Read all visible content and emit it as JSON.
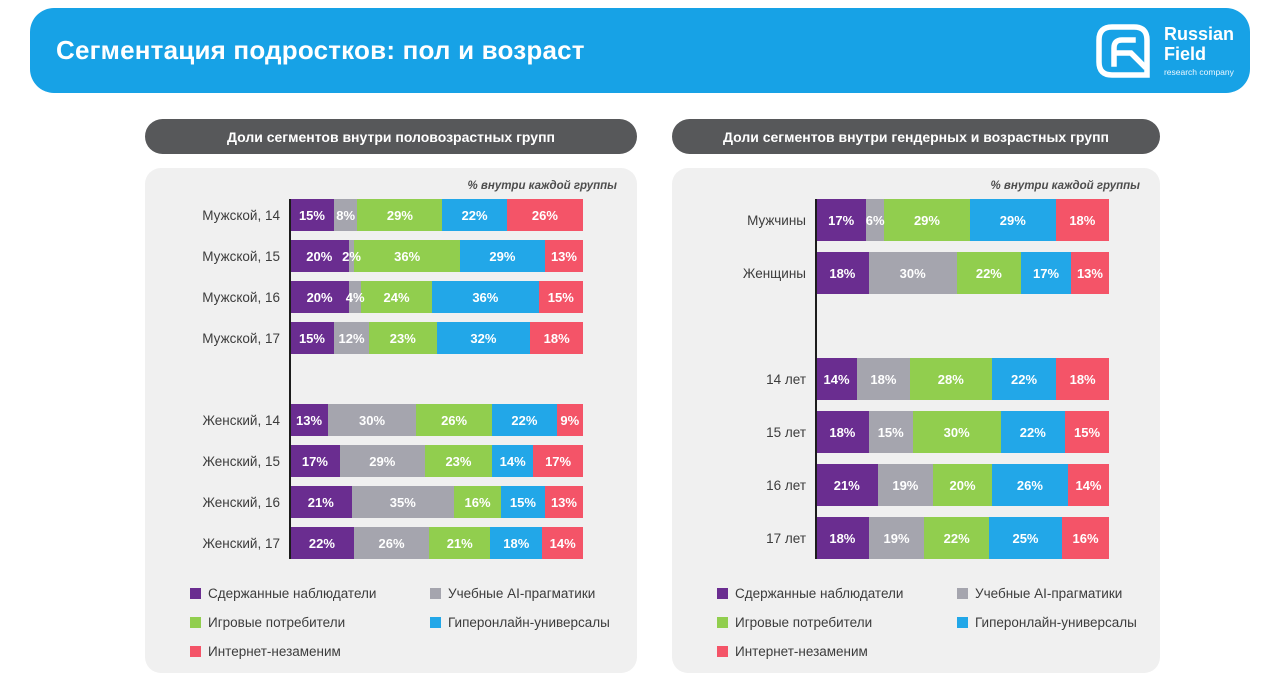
{
  "header": {
    "title": "Сегментация подростков: пол и возраст",
    "logo": {
      "line1": "Russian",
      "line2": "Field",
      "subtitle": "research company"
    }
  },
  "colors": {
    "header_blue": "#17A2E6",
    "pill_gray": "#57585A",
    "panel_gray": "#F0F0F0",
    "axis": "#1C1C1C"
  },
  "chart_data": [
    {
      "type": "bar",
      "stacked": true,
      "orientation": "horizontal",
      "title": "Доли сегментов внутри половозрастных групп",
      "note": "% внутри каждой группы",
      "unit": "%",
      "xlim": [
        0,
        100
      ],
      "series": [
        "Сдержанные наблюдатели",
        "Учебные AI-прагматики",
        "Игровые потребители",
        "Гиперонлайн-универсалы",
        "Интернет-незаменим"
      ],
      "series_colors": [
        "#6A2D90",
        "#A5A5AE",
        "#91CE4E",
        "#22A7E8",
        "#F45468"
      ],
      "groups": [
        {
          "rows": [
            {
              "label": "Мужской, 14",
              "values": [
                15,
                8,
                29,
                22,
                26
              ]
            },
            {
              "label": "Мужской, 15",
              "values": [
                20,
                2,
                36,
                29,
                13
              ]
            },
            {
              "label": "Мужской, 16",
              "values": [
                20,
                4,
                24,
                36,
                15
              ]
            },
            {
              "label": "Мужской, 17",
              "values": [
                15,
                12,
                23,
                32,
                18
              ]
            }
          ]
        },
        {
          "rows": [
            {
              "label": "Женский, 14",
              "values": [
                13,
                30,
                26,
                22,
                9
              ]
            },
            {
              "label": "Женский, 15",
              "values": [
                17,
                29,
                23,
                14,
                17
              ]
            },
            {
              "label": "Женский, 16",
              "values": [
                21,
                35,
                16,
                15,
                13
              ]
            },
            {
              "label": "Женский, 17",
              "values": [
                22,
                26,
                21,
                18,
                14
              ]
            }
          ]
        }
      ]
    },
    {
      "type": "bar",
      "stacked": true,
      "orientation": "horizontal",
      "title": "Доли сегментов внутри гендерных и возрастных групп",
      "note": "% внутри каждой группы",
      "unit": "%",
      "xlim": [
        0,
        100
      ],
      "series": [
        "Сдержанные наблюдатели",
        "Учебные AI-прагматики",
        "Игровые потребители",
        "Гиперонлайн-универсалы",
        "Интернет-незаменим"
      ],
      "series_colors": [
        "#6A2D90",
        "#A5A5AE",
        "#91CE4E",
        "#22A7E8",
        "#F45468"
      ],
      "groups": [
        {
          "rows": [
            {
              "label": "Мужчины",
              "values": [
                17,
                6,
                29,
                29,
                18
              ]
            },
            {
              "label": "Женщины",
              "values": [
                18,
                30,
                22,
                17,
                13
              ]
            }
          ]
        },
        {
          "rows": [
            {
              "label": "14 лет",
              "values": [
                14,
                18,
                28,
                22,
                18
              ]
            },
            {
              "label": "15 лет",
              "values": [
                18,
                15,
                30,
                22,
                15
              ]
            },
            {
              "label": "16 лет",
              "values": [
                21,
                19,
                20,
                26,
                14
              ]
            },
            {
              "label": "17 лет",
              "values": [
                18,
                19,
                22,
                25,
                16
              ]
            }
          ]
        }
      ]
    }
  ]
}
